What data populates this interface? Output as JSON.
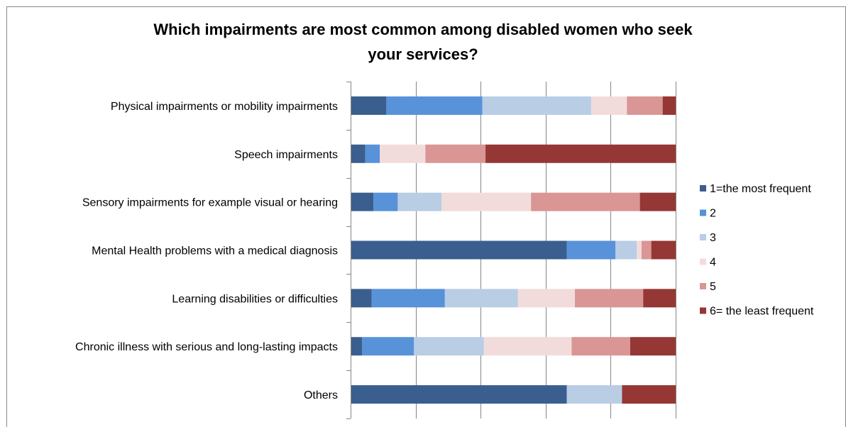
{
  "chart_data": {
    "type": "bar",
    "orientation": "horizontal",
    "stacked": true,
    "percent_stacked": true,
    "title": "Which impairments are most common among disabled women who seek your services?",
    "title_lines": [
      "Which impairments are most common among disabled women who seek",
      "your services?"
    ],
    "xlabel": "",
    "ylabel": "",
    "xlim": [
      0,
      100
    ],
    "grid": true,
    "legend_position": "right",
    "categories": [
      "Physical impairments or mobility impairments",
      "Speech impairments",
      "Sensory impairments for example visual or hearing",
      "Mental Health problems with a medical diagnosis",
      "Learning disabilities or difficulties",
      "Chronic illness with serious and long-lasting impacts",
      "Others"
    ],
    "series": [
      {
        "name": "1=the most frequent",
        "color": "#3A5F8E",
        "values": [
          11,
          4.5,
          7,
          66.5,
          6.5,
          3.5,
          66.5
        ]
      },
      {
        "name": "2",
        "color": "#5892D8",
        "values": [
          29.5,
          4.5,
          7.5,
          15,
          22.5,
          16,
          0
        ]
      },
      {
        "name": "3",
        "color": "#B9CDE5",
        "values": [
          33.5,
          0,
          13.5,
          6.5,
          22.5,
          21.5,
          17
        ]
      },
      {
        "name": "4",
        "color": "#F2DCDB",
        "values": [
          11,
          14,
          27.5,
          1.5,
          17.5,
          27,
          0
        ]
      },
      {
        "name": "5",
        "color": "#D99694",
        "values": [
          11,
          18.5,
          33.5,
          3,
          21,
          18,
          0
        ]
      },
      {
        "name": "6= the least frequent",
        "color": "#953735",
        "values": [
          4,
          58.5,
          11,
          7.5,
          10,
          14,
          16.5
        ]
      }
    ]
  }
}
